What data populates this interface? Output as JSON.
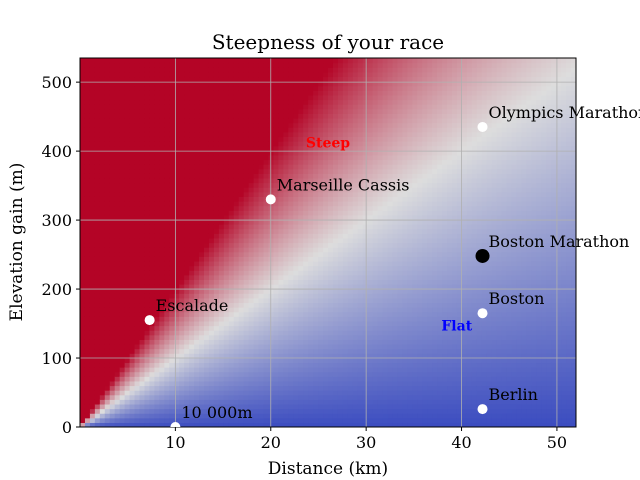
{
  "chart_data": {
    "type": "heatmap",
    "title": "Steepness of your race",
    "xlabel": "Distance (km)",
    "ylabel": "Elevation gain (m)",
    "xlim": [
      0,
      52
    ],
    "ylim": [
      0,
      535
    ],
    "x_ticks": [
      10,
      20,
      30,
      40,
      50
    ],
    "y_ticks": [
      0,
      100,
      200,
      300,
      400,
      500
    ],
    "grid": true,
    "colormap": "coolwarm",
    "colors": {
      "low": "#3b4cc0",
      "mid": "#dddddd",
      "high": "#b40426"
    },
    "regions": [
      {
        "label": "Steep",
        "x": 26,
        "y": 405,
        "color": "#ff0000"
      },
      {
        "label": "Flat",
        "x": 39.5,
        "y": 140,
        "color": "#0000ff"
      }
    ],
    "points": [
      {
        "name": "Olympics Marathon",
        "x": 42.2,
        "y": 435,
        "color": "#ffffff"
      },
      {
        "name": "Marseille Cassis",
        "x": 20,
        "y": 330,
        "color": "#ffffff"
      },
      {
        "name": "Boston Marathon",
        "x": 42.2,
        "y": 248,
        "color": "#000000"
      },
      {
        "name": "Boston",
        "x": 42.2,
        "y": 165,
        "color": "#ffffff"
      },
      {
        "name": "Escalade",
        "x": 7.3,
        "y": 155,
        "color": "#ffffff"
      },
      {
        "name": "10 000m",
        "x": 10,
        "y": 0,
        "color": "#ffffff"
      },
      {
        "name": "Berlin",
        "x": 42.2,
        "y": 26,
        "color": "#ffffff"
      }
    ]
  }
}
